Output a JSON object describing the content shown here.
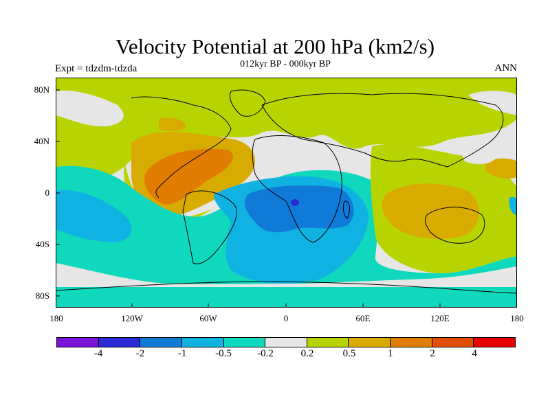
{
  "title": "Velocity Potential at 200 hPa (km2/s)",
  "subtitle": "012kyr BP - 000kyr BP",
  "left_string": "Expt = tdzdm-tdzda",
  "right_string": "ANN",
  "axes": {
    "lat_labels": [
      "80N",
      "40N",
      "0",
      "40S",
      "80S"
    ],
    "lon_labels": [
      "180",
      "120W",
      "60W",
      "0",
      "60E",
      "120E",
      "180"
    ]
  },
  "colorbar": {
    "colors": [
      "#7a14d8",
      "#2a2ad6",
      "#0f7ad8",
      "#10b2e2",
      "#0fd8bd",
      "#e6e6e6",
      "#b8d400",
      "#d8ab00",
      "#e07d00",
      "#e04e00",
      "#e80000"
    ],
    "labels": [
      "-4",
      "-2",
      "-1",
      "-0.5",
      "-0.2",
      "0.2",
      "0.5",
      "1",
      "2",
      "4"
    ]
  },
  "palette": {
    "neutral": "#e6e6e6",
    "pos1": "#b8d400",
    "pos2": "#d8ab00",
    "pos3": "#e07d00",
    "neg1": "#0fd8bd",
    "neg2": "#10b2e2",
    "neg3": "#0f7ad8",
    "neg4": "#2a2ad6"
  }
}
